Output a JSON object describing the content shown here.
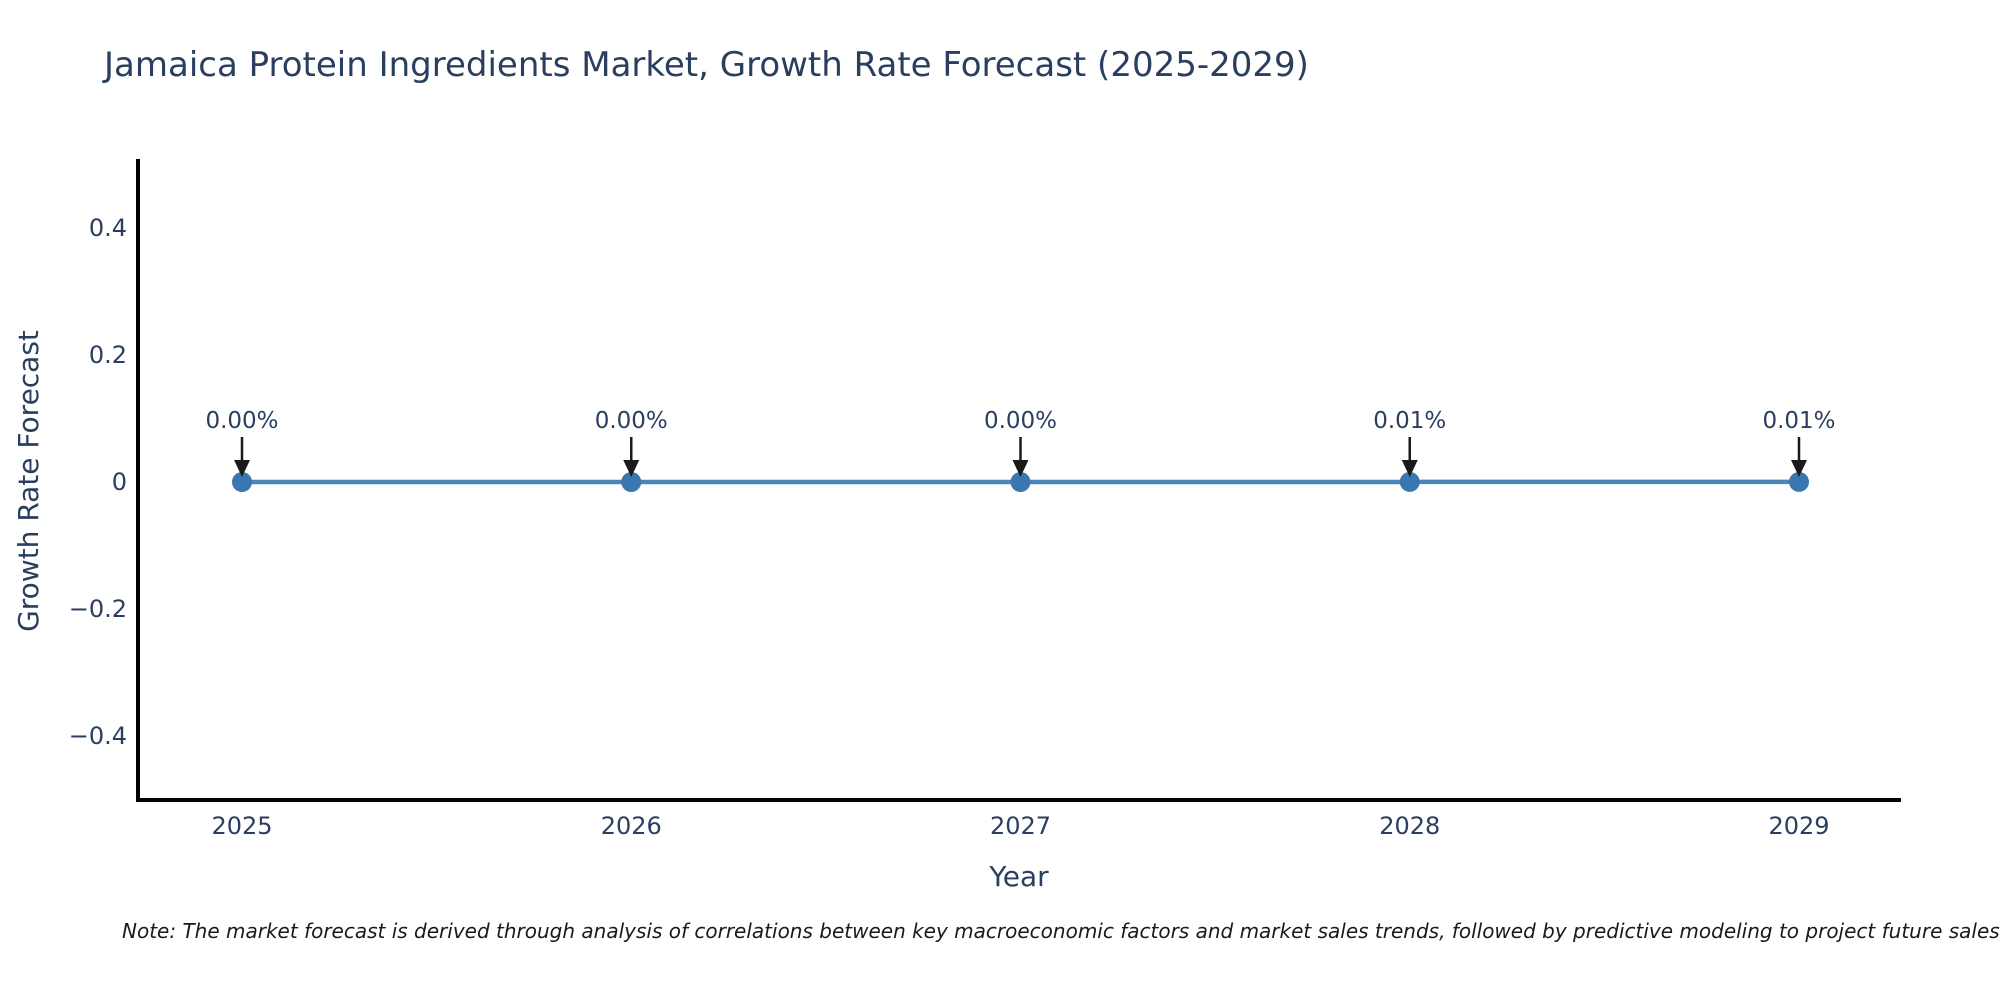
{
  "chart_data": {
    "type": "line",
    "title": "Jamaica Protein Ingredients Market, Growth Rate Forecast (2025-2029)",
    "xlabel": "Year",
    "ylabel": "Growth Rate Forecast",
    "categories": [
      "2025",
      "2026",
      "2027",
      "2028",
      "2029"
    ],
    "series": [
      {
        "name": "Growth Rate Forecast",
        "x": [
          2025,
          2026,
          2027,
          2028,
          2029
        ],
        "values": [
          0.0,
          0.0,
          0.0,
          0.0001,
          0.0001
        ],
        "point_labels": [
          "0.00%",
          "0.00%",
          "0.00%",
          "0.01%",
          "0.01%"
        ]
      }
    ],
    "ylim": [
      -0.5,
      0.5
    ],
    "yticks": [
      {
        "label": "0.4",
        "value": 0.4
      },
      {
        "label": "0.2",
        "value": 0.2
      },
      {
        "label": "0",
        "value": 0.0
      },
      {
        "label": "−0.2",
        "value": -0.2
      },
      {
        "label": "−0.4",
        "value": -0.4
      }
    ],
    "grid": false,
    "legend_position": "none",
    "colors": {
      "line": "#4c86b8",
      "marker": "#3a76b0",
      "arrow": "#1a1a1a",
      "axis_line": "#000000",
      "text": "#2a3f5f"
    }
  },
  "note": "Note: The market forecast is derived through analysis of correlations between key macroeconomic factors and market sales trends, followed by predictive modeling to project future sales"
}
